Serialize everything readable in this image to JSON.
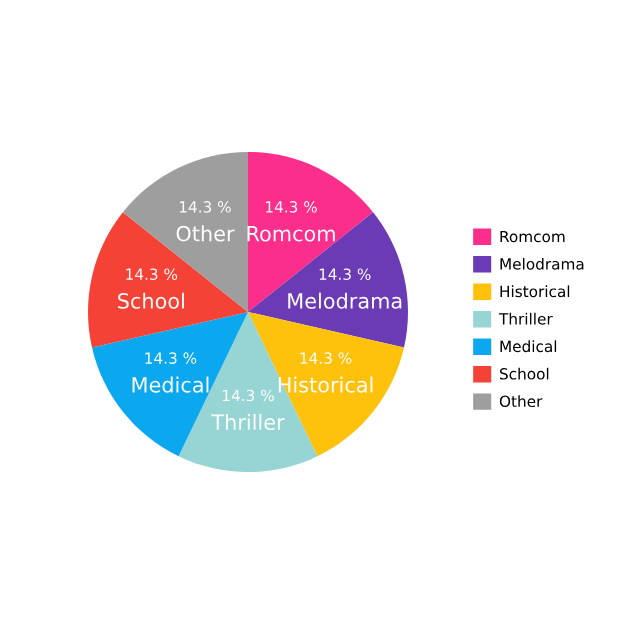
{
  "chart_data": {
    "type": "pie",
    "categories": [
      "Romcom",
      "Melodrama",
      "Historical",
      "Thriller",
      "Medical",
      "School",
      "Other"
    ],
    "values": [
      14.3,
      14.3,
      14.3,
      14.3,
      14.3,
      14.3,
      14.3
    ],
    "value_labels": [
      "14.3 %",
      "14.3 %",
      "14.3 %",
      "14.3 %",
      "14.3 %",
      "14.3 %",
      "14.3 %"
    ],
    "colors": [
      "#fb2e8c",
      "#6a3bb5",
      "#fec10c",
      "#97d4d4",
      "#0ca8ef",
      "#f44336",
      "#9e9e9e"
    ],
    "legend": "right"
  }
}
